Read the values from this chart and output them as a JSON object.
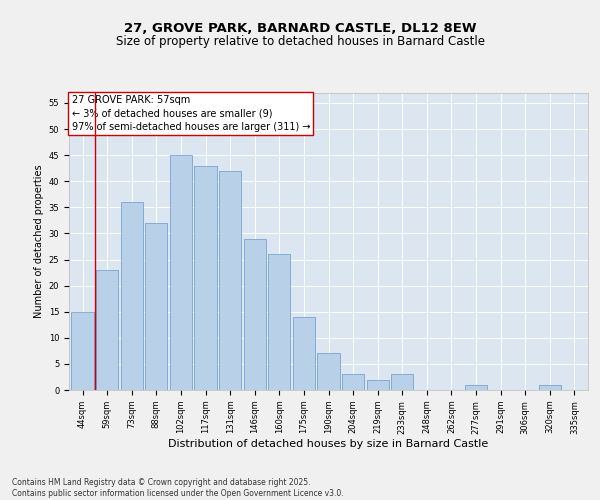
{
  "title1": "27, GROVE PARK, BARNARD CASTLE, DL12 8EW",
  "title2": "Size of property relative to detached houses in Barnard Castle",
  "xlabel": "Distribution of detached houses by size in Barnard Castle",
  "ylabel": "Number of detached properties",
  "categories": [
    "44sqm",
    "59sqm",
    "73sqm",
    "88sqm",
    "102sqm",
    "117sqm",
    "131sqm",
    "146sqm",
    "160sqm",
    "175sqm",
    "190sqm",
    "204sqm",
    "219sqm",
    "233sqm",
    "248sqm",
    "262sqm",
    "277sqm",
    "291sqm",
    "306sqm",
    "320sqm",
    "335sqm"
  ],
  "values": [
    15,
    23,
    36,
    32,
    45,
    43,
    42,
    29,
    26,
    14,
    7,
    3,
    2,
    3,
    0,
    0,
    1,
    0,
    0,
    1,
    0
  ],
  "bar_color": "#b8d0e8",
  "bar_edge_color": "#6699cc",
  "background_color": "#dce6f0",
  "grid_color": "#ffffff",
  "fig_background": "#f0f0f0",
  "vline_color": "#cc0000",
  "vline_x_index": 1,
  "annotation_text": "27 GROVE PARK: 57sqm\n← 3% of detached houses are smaller (9)\n97% of semi-detached houses are larger (311) →",
  "annotation_box_color": "#ffffff",
  "annotation_box_edge": "#cc0000",
  "ylim": [
    0,
    57
  ],
  "yticks": [
    0,
    5,
    10,
    15,
    20,
    25,
    30,
    35,
    40,
    45,
    50,
    55
  ],
  "footnote": "Contains HM Land Registry data © Crown copyright and database right 2025.\nContains public sector information licensed under the Open Government Licence v3.0.",
  "title1_fontsize": 9.5,
  "title2_fontsize": 8.5,
  "xlabel_fontsize": 8,
  "ylabel_fontsize": 7,
  "tick_fontsize": 6,
  "annot_fontsize": 7,
  "footnote_fontsize": 5.5
}
